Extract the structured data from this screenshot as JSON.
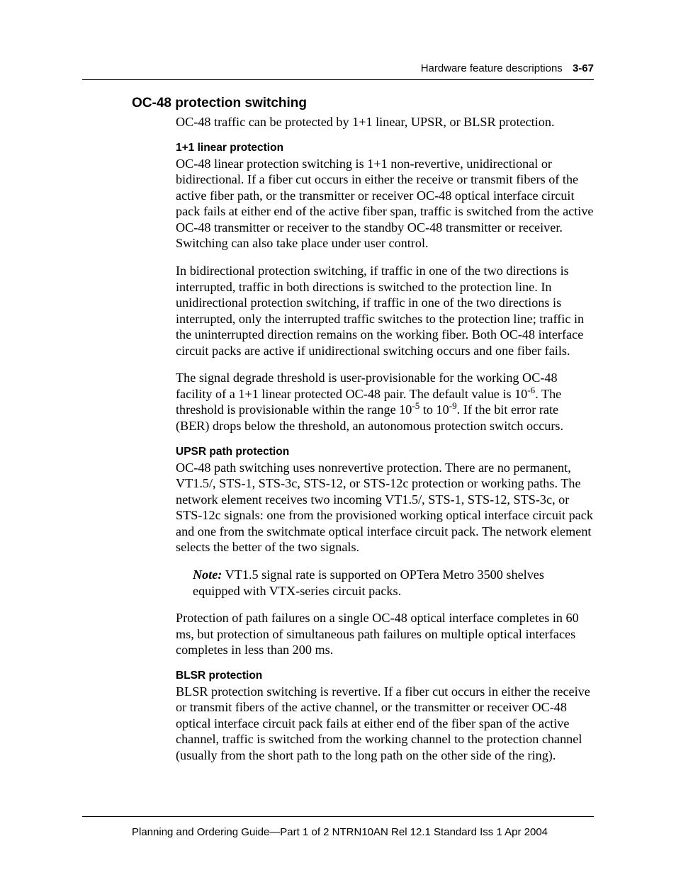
{
  "header": {
    "section": "Hardware feature descriptions",
    "page_number": "3-67"
  },
  "section_title": "OC-48 protection switching",
  "intro_para": "OC-48 traffic can be protected by 1+1 linear, UPSR, or BLSR protection.",
  "linear": {
    "title": "1+1 linear protection",
    "p1": "OC-48 linear protection switching is 1+1 non-revertive, unidirectional or bidirectional. If a fiber cut occurs in either the receive or transmit fibers of the active fiber path, or the transmitter or receiver OC-48 optical interface circuit pack fails at either end of the active fiber span, traffic is switched from the active OC-48 transmitter or receiver to the standby OC-48 transmitter or receiver. Switching can also take place under user control.",
    "p2": "In bidirectional protection switching, if traffic in one of the two directions is interrupted, traffic in both directions is switched to the protection line. In unidirectional protection switching, if traffic in one of the two directions is interrupted, only the interrupted traffic switches to the protection line; traffic in the uninterrupted direction remains on the working fiber. Both OC-48 interface circuit packs are active if unidirectional switching occurs and one fiber fails.",
    "p3_a": "The signal degrade threshold is user-provisionable for the working OC-48 facility of a 1+1 linear protected OC-48 pair. The default value is 10",
    "p3_b": ". The threshold is provisionable within the range 10",
    "p3_c": " to 10",
    "p3_d": ". If the bit error rate (BER) drops below the threshold, an autonomous protection switch occurs.",
    "exp_default": "-6",
    "exp_low": "-5",
    "exp_high": "-9"
  },
  "upsr": {
    "title": "UPSR path protection",
    "p1": "OC-48 path switching uses nonrevertive protection. There are no permanent, VT1.5/, STS-1, STS-3c, STS-12, or STS-12c protection or working paths. The network element receives two incoming VT1.5/, STS-1, STS-12, STS-3c, or STS-12c signals: one from the provisioned working optical interface circuit pack and one from the switchmate optical interface circuit pack. The network element selects the better of the two signals.",
    "note_label": "Note:",
    "note_body": "VT1.5 signal rate is supported on OPTera Metro 3500 shelves equipped with VTX-series circuit packs.",
    "p2": "Protection of path failures on a single OC-48 optical interface completes in 60 ms, but protection of simultaneous path failures on multiple optical interfaces completes in less than 200 ms."
  },
  "blsr": {
    "title": "BLSR protection",
    "p1": "BLSR protection switching is revertive. If a fiber cut occurs in either the receive or transmit fibers of the active channel, or the transmitter or receiver OC-48 optical interface circuit pack fails at either end of the fiber span of the active channel, traffic is switched from the working channel to the protection channel (usually from the short path to the long path on the other side of the ring)."
  },
  "footer": "Planning and Ordering Guide—Part 1 of 2   NTRN10AN   Rel 12.1  Standard   Iss 1   Apr 2004"
}
